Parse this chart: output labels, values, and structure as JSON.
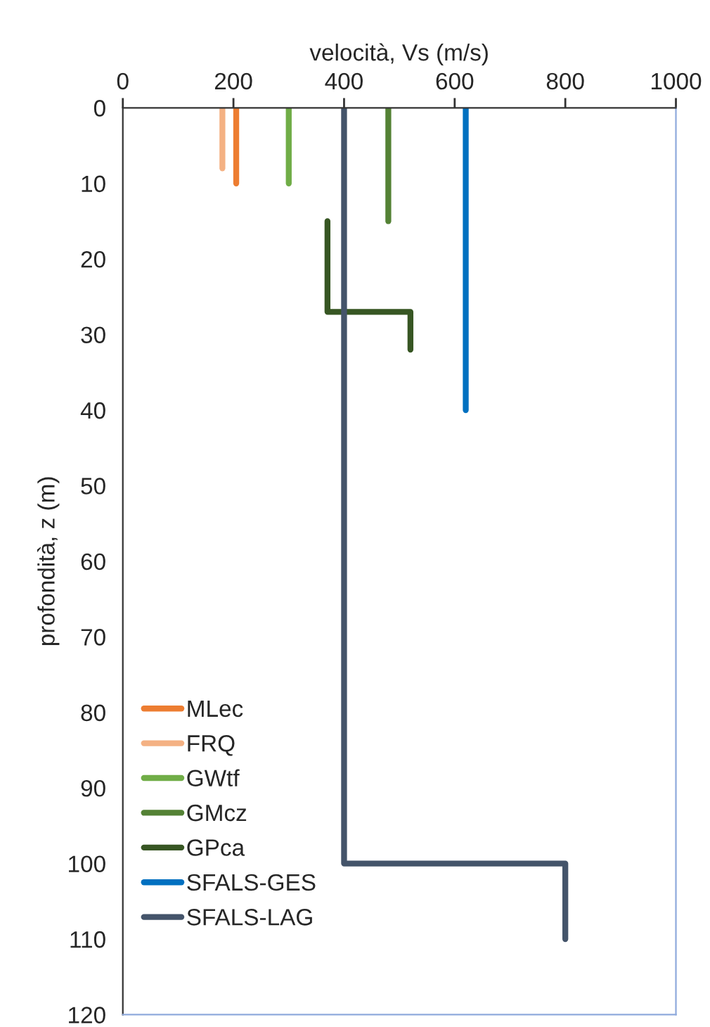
{
  "chart_data": {
    "type": "line",
    "xlabel": "velocità, Vs (m/s)",
    "ylabel": "profondità, z (m)",
    "xlim": [
      0,
      1000
    ],
    "xticks": [
      0,
      200,
      400,
      600,
      800,
      1000
    ],
    "ylim": [
      120,
      0
    ],
    "yticks": [
      0,
      10,
      20,
      30,
      40,
      50,
      60,
      70,
      80,
      90,
      100,
      110,
      120
    ],
    "grid": false,
    "legend": "bottom left",
    "marker": "none",
    "series": [
      {
        "name": "MLec",
        "color": "#ed7d31",
        "x": [
          205,
          205
        ],
        "values": [
          0,
          10
        ]
      },
      {
        "name": "FRQ",
        "color": "#f4b183",
        "x": [
          180,
          180
        ],
        "values": [
          0,
          8
        ]
      },
      {
        "name": "GWtf",
        "color": "#70ad47",
        "x": [
          300,
          300
        ],
        "values": [
          0,
          10
        ]
      },
      {
        "name": "GMcz",
        "color": "#548235",
        "x": [
          480,
          480
        ],
        "values": [
          0,
          15
        ]
      },
      {
        "name": "GPca",
        "color": "#375623",
        "x": [
          370,
          370,
          520,
          520
        ],
        "values": [
          15,
          27,
          27,
          32
        ]
      },
      {
        "name": "SFALS-GES",
        "color": "#0070c0",
        "x": [
          620,
          620
        ],
        "values": [
          0,
          40
        ]
      },
      {
        "name": "SFALS-LAG",
        "color": "#44546a",
        "x": [
          400,
          400,
          800,
          800
        ],
        "values": [
          0,
          100,
          100,
          110
        ]
      }
    ]
  }
}
